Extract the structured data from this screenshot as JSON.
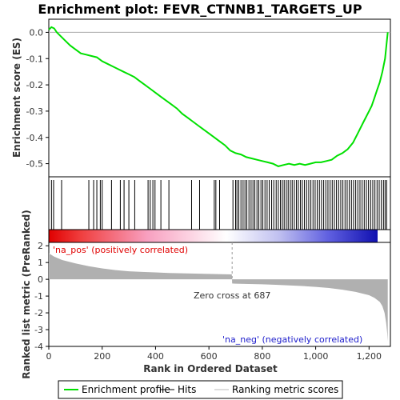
{
  "chart_data": {
    "type": "line",
    "title": "Enrichment plot: FEVR_CTNNB1_TARGETS_UP",
    "xlabel": "Rank in Ordered Dataset",
    "ylabel_top": "Enrichment score (ES)",
    "ylabel_bottom": "Ranked list metric (PreRanked)",
    "x_range": [
      0,
      1280
    ],
    "x_ticks": [
      0,
      200,
      400,
      600,
      800,
      1000,
      1200
    ],
    "x_tick_labels": [
      "0",
      "200",
      "400",
      "600",
      "800",
      "1,000",
      "1,200"
    ],
    "es_ylim": [
      -0.55,
      0.05
    ],
    "es_ticks": [
      0.0,
      -0.1,
      -0.2,
      -0.3,
      -0.4,
      -0.5
    ],
    "es_tick_labels": [
      "0.0",
      "-0.1",
      "-0.2",
      "-0.3",
      "-0.4",
      "-0.5"
    ],
    "metric_ylim": [
      -4,
      2.2
    ],
    "metric_ticks": [
      2,
      1,
      0,
      -1,
      -2,
      -3,
      -4
    ],
    "metric_tick_labels": [
      "2",
      "1",
      "0",
      "-1",
      "-2",
      "-3",
      "-4"
    ],
    "enrichment_profile": {
      "x": [
        0,
        10,
        20,
        30,
        40,
        60,
        80,
        100,
        120,
        140,
        160,
        180,
        200,
        220,
        240,
        260,
        280,
        300,
        320,
        340,
        360,
        380,
        400,
        420,
        440,
        460,
        480,
        500,
        520,
        540,
        560,
        580,
        600,
        620,
        640,
        660,
        680,
        700,
        720,
        740,
        760,
        780,
        800,
        820,
        840,
        860,
        880,
        900,
        920,
        940,
        960,
        980,
        1000,
        1020,
        1040,
        1060,
        1080,
        1100,
        1120,
        1140,
        1160,
        1180,
        1200,
        1210,
        1220,
        1230,
        1240,
        1250,
        1260,
        1265,
        1270
      ],
      "y": [
        0.01,
        0.02,
        0.015,
        0.0,
        -0.01,
        -0.03,
        -0.05,
        -0.065,
        -0.08,
        -0.085,
        -0.09,
        -0.095,
        -0.11,
        -0.12,
        -0.13,
        -0.14,
        -0.15,
        -0.16,
        -0.17,
        -0.185,
        -0.2,
        -0.215,
        -0.23,
        -0.245,
        -0.26,
        -0.275,
        -0.29,
        -0.31,
        -0.325,
        -0.34,
        -0.355,
        -0.37,
        -0.385,
        -0.4,
        -0.415,
        -0.43,
        -0.45,
        -0.46,
        -0.465,
        -0.475,
        -0.48,
        -0.485,
        -0.49,
        -0.495,
        -0.5,
        -0.51,
        -0.505,
        -0.5,
        -0.505,
        -0.5,
        -0.505,
        -0.5,
        -0.495,
        -0.495,
        -0.49,
        -0.485,
        -0.47,
        -0.46,
        -0.445,
        -0.42,
        -0.38,
        -0.34,
        -0.3,
        -0.28,
        -0.25,
        -0.22,
        -0.19,
        -0.15,
        -0.1,
        -0.05,
        0.0
      ]
    },
    "hits": [
      10,
      18,
      48,
      150,
      168,
      180,
      193,
      200,
      235,
      268,
      282,
      300,
      322,
      372,
      380,
      390,
      398,
      420,
      450,
      535,
      565,
      620,
      626,
      640,
      690,
      700,
      705,
      712,
      720,
      728,
      735,
      742,
      750,
      758,
      765,
      772,
      780,
      787,
      795,
      802,
      810,
      818,
      826,
      835,
      843,
      852,
      860,
      868,
      875,
      882,
      890,
      897,
      905,
      912,
      920,
      928,
      935,
      943,
      950,
      958,
      966,
      974,
      982,
      990,
      998,
      1006,
      1014,
      1022,
      1030,
      1038,
      1046,
      1054,
      1062,
      1070,
      1078,
      1086,
      1094,
      1102,
      1110,
      1118,
      1126,
      1134,
      1142,
      1150,
      1158,
      1166,
      1174,
      1182,
      1190,
      1198,
      1206,
      1214,
      1222,
      1230,
      1238,
      1246,
      1254,
      1260,
      1266
    ],
    "metric": {
      "x": [
        0,
        20,
        50,
        100,
        150,
        200,
        250,
        300,
        350,
        400,
        450,
        500,
        550,
        600,
        650,
        686,
        687,
        700,
        750,
        800,
        850,
        900,
        950,
        1000,
        1050,
        1100,
        1150,
        1200,
        1220,
        1240,
        1250,
        1258,
        1264,
        1268,
        1270
      ],
      "y": [
        1.55,
        1.35,
        1.15,
        0.95,
        0.78,
        0.65,
        0.55,
        0.48,
        0.44,
        0.41,
        0.38,
        0.36,
        0.34,
        0.32,
        0.3,
        0.29,
        -0.25,
        -0.26,
        -0.28,
        -0.3,
        -0.33,
        -0.36,
        -0.4,
        -0.45,
        -0.52,
        -0.62,
        -0.75,
        -0.95,
        -1.1,
        -1.35,
        -1.6,
        -2.0,
        -2.6,
        -3.2,
        -3.7
      ]
    },
    "zero_cross": 687,
    "zero_cross_label": "Zero cross at 687",
    "pos_label": "'na_pos' (positively correlated)",
    "neg_label": "'na_neg' (negatively correlated)",
    "legend": [
      {
        "label": "Enrichment profile",
        "color": "#00e000"
      },
      {
        "label": "Hits",
        "color": "#000000"
      },
      {
        "label": "Ranking metric scores",
        "color": "#bbbbbb"
      }
    ],
    "colors": {
      "profile": "#00e000",
      "pos_label": "#e00000",
      "neg_label": "#2020cc",
      "metric_fill": "#b0b0b0"
    }
  }
}
